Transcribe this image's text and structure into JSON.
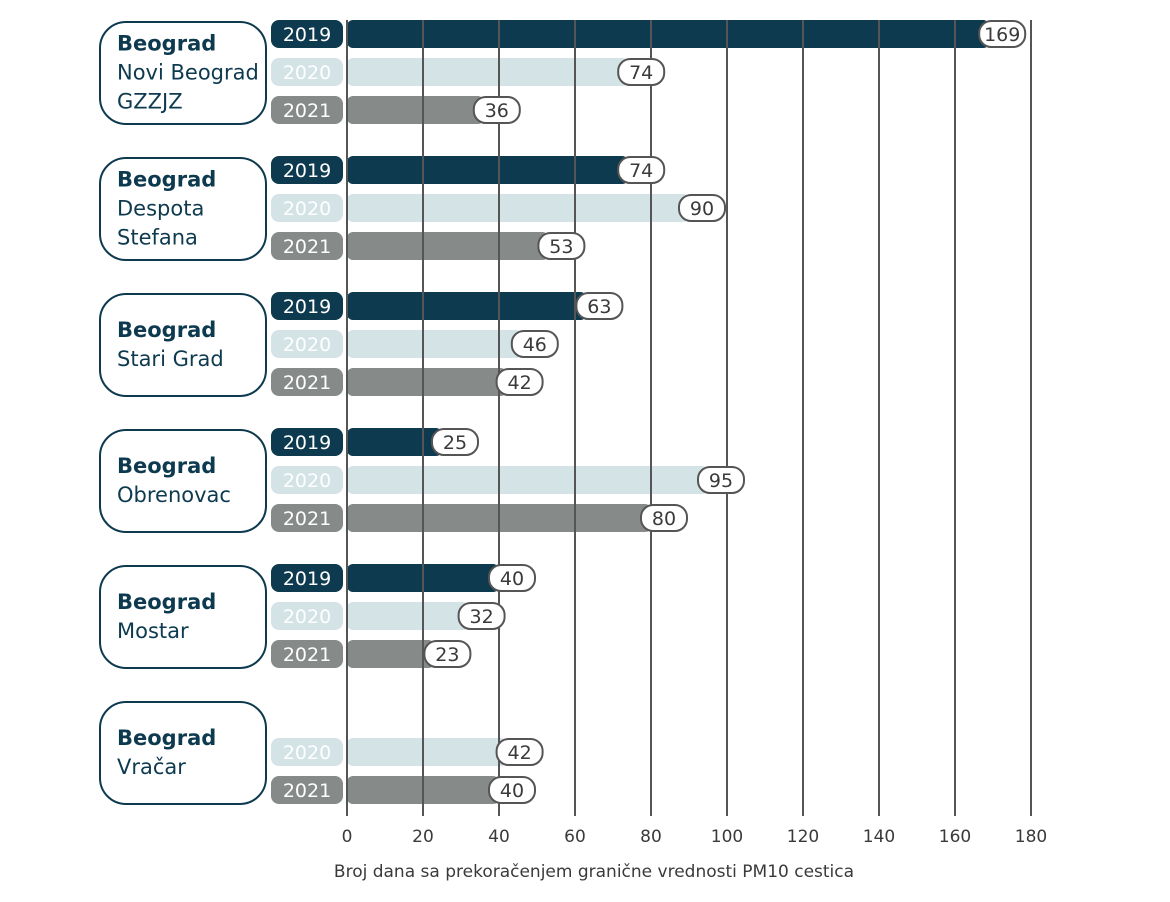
{
  "chart_data": {
    "type": "bar",
    "orientation": "horizontal",
    "xlabel": "Broj dana sa prekoračenjem granične vrednosti PM10 cestica",
    "xlim": [
      0,
      180
    ],
    "xticks": [
      "0",
      "20",
      "40",
      "60",
      "80",
      "100",
      "120",
      "140",
      "160",
      "180"
    ],
    "grid": true,
    "colors": {
      "2019": "#0e3a4f",
      "2020": "#d3e3e6",
      "2021": "#868a88"
    },
    "groups": [
      {
        "station_bold": "Beograd",
        "station_lines": [
          "Novi Beograd",
          "GZZJZ"
        ],
        "bars": [
          {
            "year": "2019",
            "value": 169
          },
          {
            "year": "2020",
            "value": 74
          },
          {
            "year": "2021",
            "value": 36
          }
        ]
      },
      {
        "station_bold": "Beograd",
        "station_lines": [
          "Despota",
          "Stefana"
        ],
        "bars": [
          {
            "year": "2019",
            "value": 74
          },
          {
            "year": "2020",
            "value": 90
          },
          {
            "year": "2021",
            "value": 53
          }
        ]
      },
      {
        "station_bold": "Beograd",
        "station_lines": [
          "Stari Grad"
        ],
        "bars": [
          {
            "year": "2019",
            "value": 63
          },
          {
            "year": "2020",
            "value": 46
          },
          {
            "year": "2021",
            "value": 42
          }
        ]
      },
      {
        "station_bold": "Beograd",
        "station_lines": [
          "Obrenovac"
        ],
        "bars": [
          {
            "year": "2019",
            "value": 25
          },
          {
            "year": "2020",
            "value": 95
          },
          {
            "year": "2021",
            "value": 80
          }
        ]
      },
      {
        "station_bold": "Beograd",
        "station_lines": [
          "Mostar"
        ],
        "bars": [
          {
            "year": "2019",
            "value": 40
          },
          {
            "year": "2020",
            "value": 32
          },
          {
            "year": "2021",
            "value": 23
          }
        ]
      },
      {
        "station_bold": "Beograd",
        "station_lines": [
          "Vračar"
        ],
        "bars": [
          {
            "year": "2020",
            "value": 42
          },
          {
            "year": "2021",
            "value": 40
          }
        ]
      }
    ]
  }
}
